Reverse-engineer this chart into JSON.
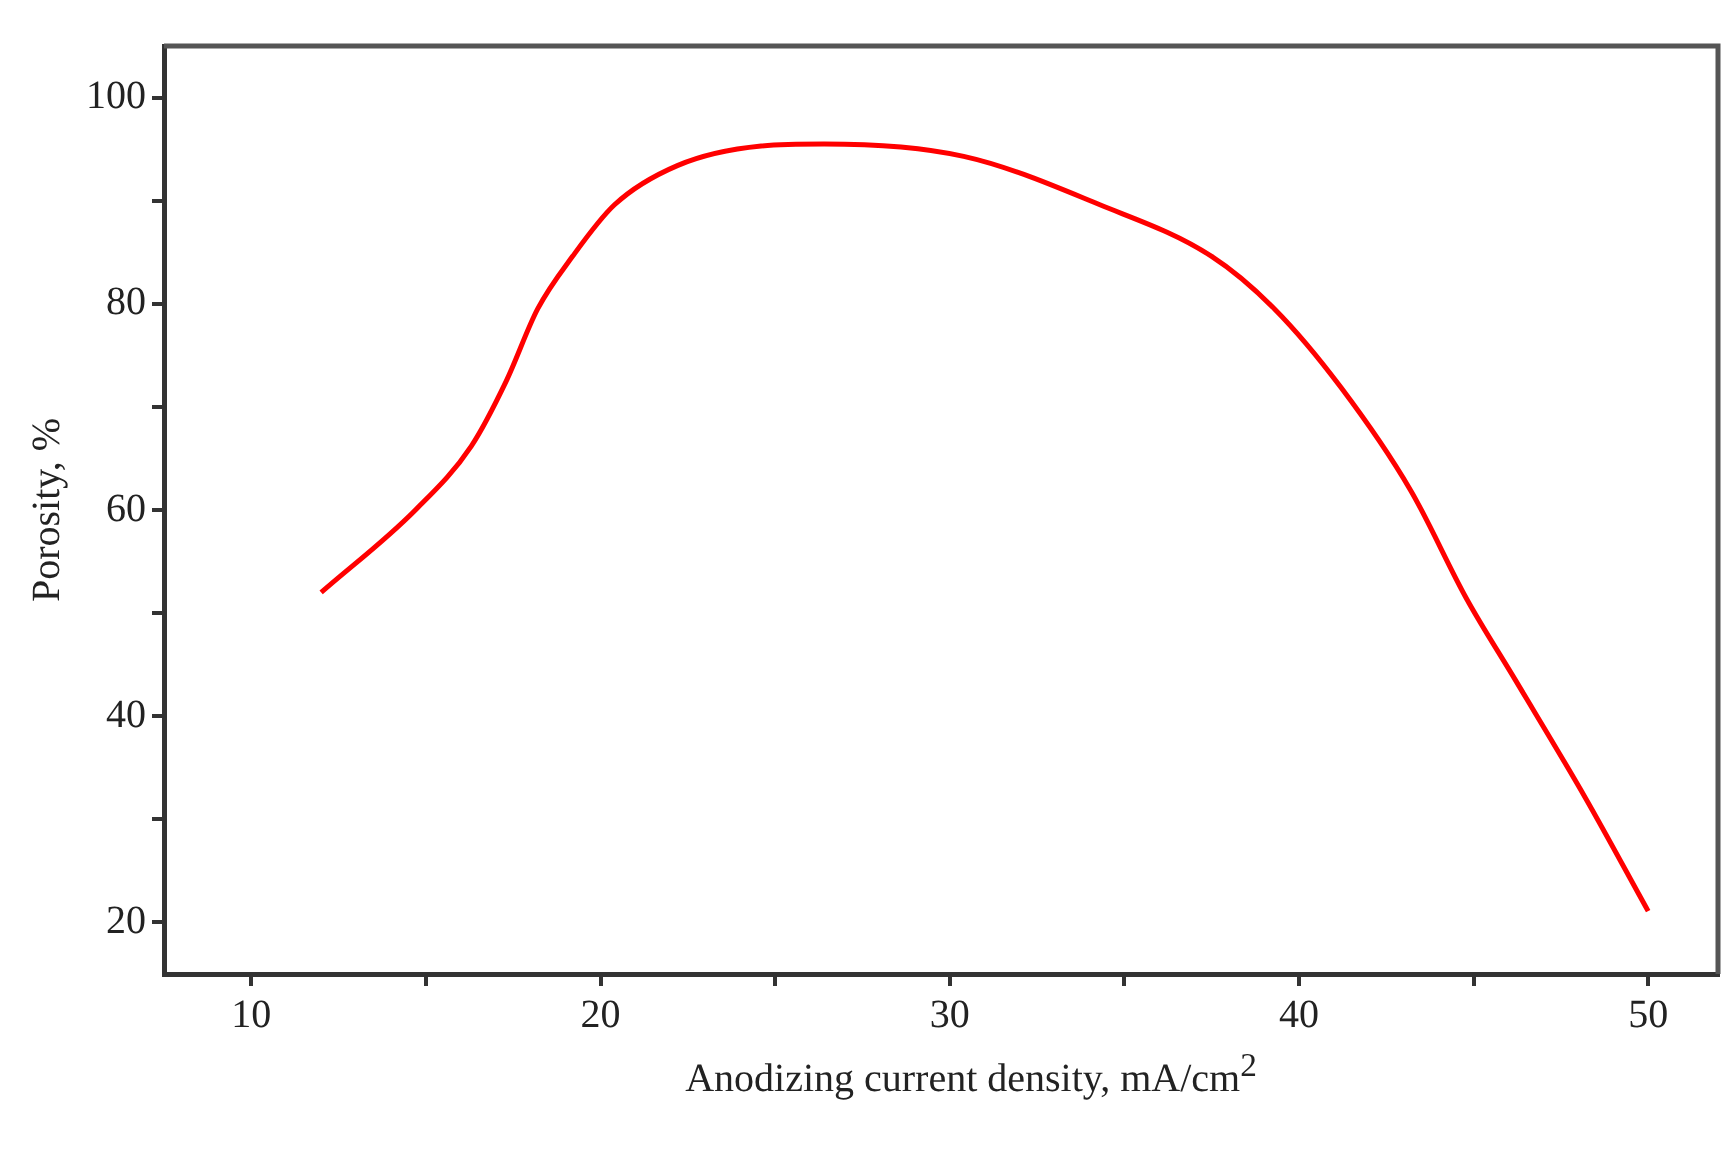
{
  "chart_data": {
    "type": "line",
    "xlabel": "Anodizing current density, mA/cm$^{2}$",
    "ylabel": "Porosity, %",
    "xlim": [
      7.5,
      52
    ],
    "xticks": [
      10,
      {
        "value": 15,
        "label": null
      },
      20,
      {
        "value": 25,
        "label": null
      },
      30,
      {
        "value": 35,
        "label": null
      },
      40,
      {
        "value": 45,
        "label": null
      },
      50
    ],
    "ylim": [
      15,
      105
    ],
    "yticks": [
      20,
      {
        "value": 30,
        "label": null
      },
      40,
      {
        "value": 50,
        "label": null
      },
      60,
      {
        "value": 70,
        "label": null
      },
      80,
      {
        "value": 90,
        "label": null
      },
      100
    ],
    "grid": false,
    "legend": false,
    "marker": "none",
    "line_style": "solid",
    "series": [
      {
        "color": "#ff0000",
        "x": [
          12,
          14.7,
          16.3,
          17.3,
          18.2,
          19.2,
          20.4,
          22.2,
          24.6,
          26.4,
          30.4,
          34.3,
          37.5,
          39.3,
          41.2,
          43.2,
          44.8,
          46.2,
          48.2,
          50
        ],
        "values": [
          52,
          60,
          66.2,
          72.5,
          79.5,
          84.6,
          89.6,
          93.4,
          95.3,
          95.5,
          94.3,
          89.6,
          84.6,
          79.5,
          71.9,
          61.9,
          51.4,
          43.5,
          32.1,
          21.1
        ]
      }
    ]
  }
}
